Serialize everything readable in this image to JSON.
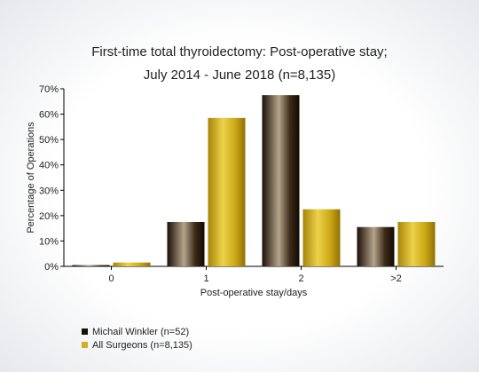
{
  "chart_data": {
    "type": "bar",
    "title": "First-time total thyroidectomy: Post-operative stay;",
    "subtitle": "July 2014 - June 2018 (n=8,135)",
    "xlabel": "Post-operative stay/days",
    "ylabel": "Percentage of Operations",
    "categories": [
      "0",
      "1",
      "2",
      ">2"
    ],
    "yticks": [
      "0%",
      "10%",
      "20%",
      "30%",
      "40%",
      "50%",
      "60%",
      "70%"
    ],
    "ylim": [
      0,
      70
    ],
    "grid": false,
    "legend_position": "bottom-left",
    "series": [
      {
        "name": "Michail Winkler (n=52)",
        "values": [
          0.5,
          17.5,
          67.5,
          15.5
        ],
        "color": "#3a2a1a"
      },
      {
        "name": "All Surgeons (n=8,135)",
        "values": [
          1.5,
          58.5,
          22.5,
          17.5
        ],
        "color": "#d4b020"
      }
    ]
  }
}
